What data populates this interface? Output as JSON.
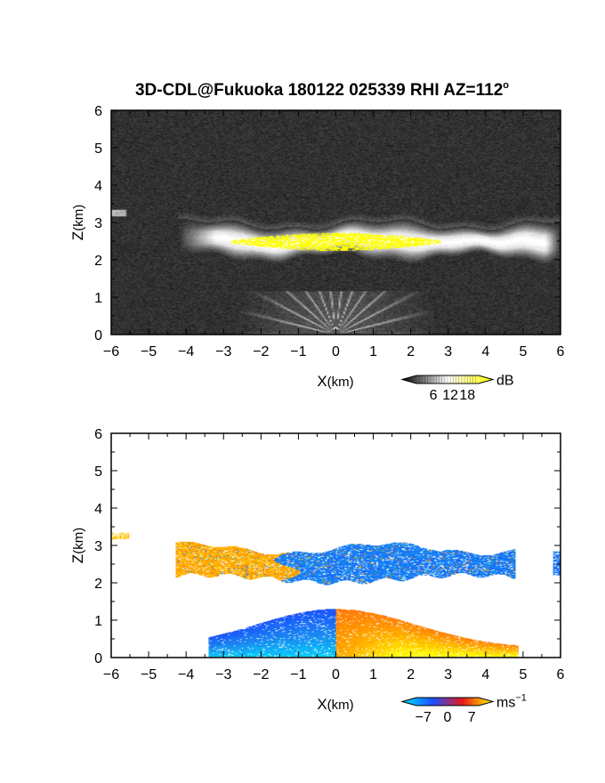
{
  "title": "3D-CDL@Fukuoka 180122 025339 RHI AZ=112",
  "title_sup": "o",
  "chart_data": [
    {
      "type": "heatmap",
      "name": "intensity",
      "xlabel_main": "X",
      "xlabel_unit": "(km)",
      "ylabel_main": "Z",
      "ylabel_unit": "(km)",
      "xlim": [
        -6,
        6
      ],
      "ylim": [
        0,
        6
      ],
      "x_ticks": [
        "−6",
        "−5",
        "−4",
        "−3",
        "−2",
        "−1",
        "0",
        "1",
        "2",
        "3",
        "4",
        "5",
        "6"
      ],
      "y_ticks": [
        "0",
        "1",
        "2",
        "3",
        "4",
        "5",
        "6"
      ],
      "background_color": "#2b2b2b",
      "colorbar": {
        "unit": "dB",
        "ticks": [
          "6",
          "12",
          "18"
        ],
        "tick_values": [
          6,
          12,
          18
        ],
        "range": [
          0,
          22
        ],
        "colors": [
          "#000000",
          "#ffffff",
          "#ffff00"
        ]
      },
      "features": [
        {
          "label": "cloud layer",
          "x_range": [
            -4.2,
            6.0
          ],
          "z_range": [
            2.0,
            3.0
          ],
          "center_z": 2.45,
          "color": "#e6e6e6"
        },
        {
          "label": "cloud core",
          "x_range": [
            -2.8,
            2.8
          ],
          "z_range": [
            2.2,
            2.75
          ],
          "color": "#ffff00"
        },
        {
          "label": "near-ground beams",
          "x_range": [
            -2.5,
            2.5
          ],
          "z_range": [
            0,
            1.1
          ],
          "color": "#cfcfcf"
        }
      ]
    },
    {
      "type": "heatmap",
      "name": "doppler velocity",
      "xlabel_main": "X",
      "xlabel_unit": "(km)",
      "ylabel_main": "Z",
      "ylabel_unit": "(km)",
      "xlim": [
        -6,
        6
      ],
      "ylim": [
        0,
        6
      ],
      "x_ticks": [
        "−6",
        "−5",
        "−4",
        "−3",
        "−2",
        "−1",
        "0",
        "1",
        "2",
        "3",
        "4",
        "5",
        "6"
      ],
      "y_ticks": [
        "0",
        "1",
        "2",
        "3",
        "4",
        "5",
        "6"
      ],
      "background_color": "#ffffff",
      "colorbar": {
        "unit": "ms",
        "unit_sup": "−1",
        "ticks": [
          "−7",
          "0",
          "7"
        ],
        "tick_values": [
          -7,
          0,
          7
        ],
        "range": [
          -9,
          9
        ],
        "colors": [
          "#00e5ff",
          "#1a4fff",
          "#e81818",
          "#ffff00"
        ]
      },
      "features": [
        {
          "label": "cloud layer west",
          "x_range": [
            -4.3,
            -1.3
          ],
          "z_range": [
            1.95,
            3.0
          ],
          "velocity": 5,
          "color": "#f03a10"
        },
        {
          "label": "cloud layer east",
          "x_range": [
            -1.2,
            4.8
          ],
          "z_range": [
            1.95,
            3.1
          ],
          "velocity": -6,
          "color": "#1e4af0"
        },
        {
          "label": "boundary layer west",
          "x_range": [
            -3.3,
            0.0
          ],
          "z_range": [
            0,
            1.1
          ],
          "velocity": -6,
          "color": "#1aa8f0"
        },
        {
          "label": "boundary layer east",
          "x_range": [
            0.0,
            4.8
          ],
          "z_range": [
            0,
            1.1
          ],
          "velocity": 6,
          "color": "#ffb000"
        }
      ]
    }
  ]
}
